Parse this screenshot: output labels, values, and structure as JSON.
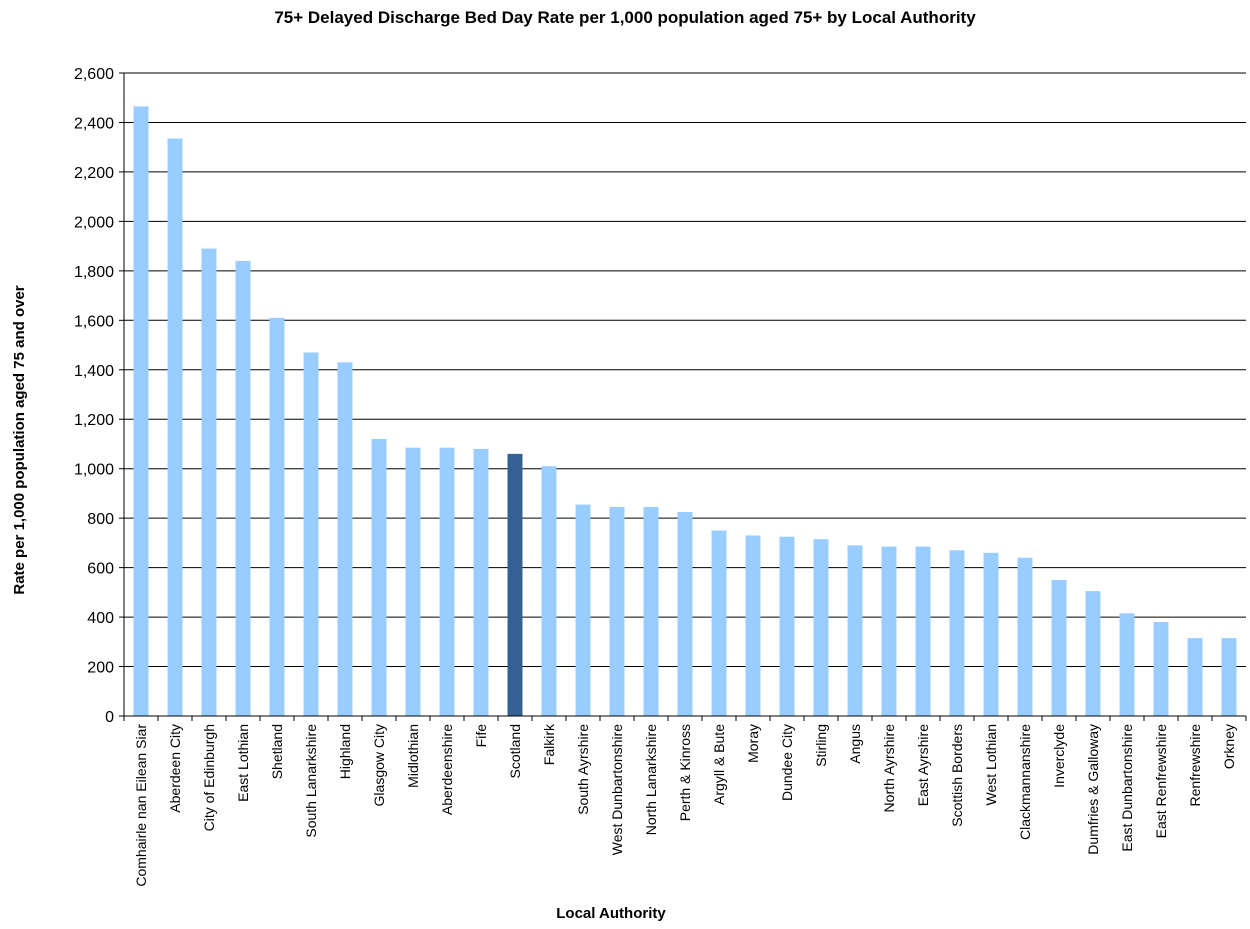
{
  "chart_data": {
    "type": "bar",
    "title": "75+ Delayed Discharge Bed Day Rate per 1,000 population aged 75+ by Local Authority",
    "xlabel": "Local Authority",
    "ylabel": "Rate per 1,000 population aged 75 and over",
    "ylim": [
      0,
      2600
    ],
    "ytick_step": 200,
    "grid": true,
    "legend": "none",
    "colors": {
      "bar": "#99ccff",
      "highlight": "#356094",
      "grid": "#000000"
    },
    "highlight_category": "Scotland",
    "categories": [
      "Comhairle nan Eilean Siar",
      "Aberdeen City",
      "City of Edinburgh",
      "East Lothian",
      "Shetland",
      "South Lanarkshire",
      "Highland",
      "Glasgow City",
      "Midlothian",
      "Aberdeenshire",
      "Fife",
      "Scotland",
      "Falkirk",
      "South Ayrshire",
      "West Dunbartonshire",
      "North Lanarkshire",
      "Perth & Kinross",
      "Argyll & Bute",
      "Moray",
      "Dundee City",
      "Stirling",
      "Angus",
      "North Ayrshire",
      "East Ayrshire",
      "Scottish Borders",
      "West Lothian",
      "Clackmannanshire",
      "Inverclyde",
      "Dumfries & Galloway",
      "East Dunbartonshire",
      "East Renfrewshire",
      "Renfrewshire",
      "Orkney"
    ],
    "values": [
      2465,
      2335,
      1890,
      1840,
      1610,
      1470,
      1430,
      1120,
      1085,
      1085,
      1080,
      1060,
      1010,
      855,
      845,
      845,
      825,
      750,
      730,
      725,
      715,
      690,
      685,
      685,
      670,
      660,
      640,
      550,
      505,
      415,
      380,
      315,
      315
    ]
  }
}
